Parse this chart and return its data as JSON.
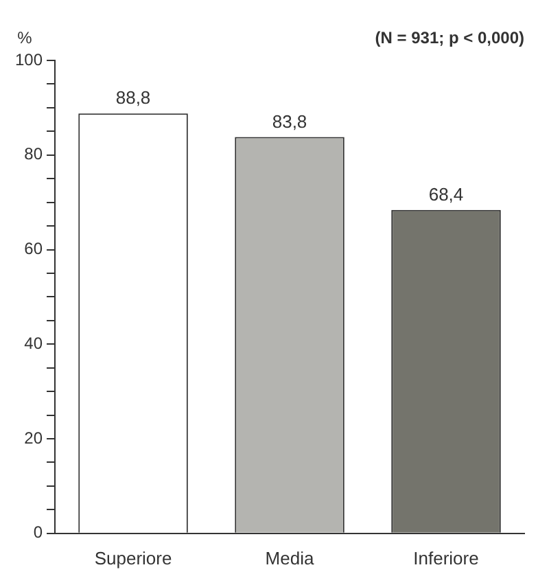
{
  "chart_data": {
    "type": "bar",
    "ylabel": "%",
    "annotations": [
      "(N = 931; p < 0,000)"
    ],
    "categories": [
      "Superiore",
      "Media",
      "Inferiore"
    ],
    "values": [
      88.8,
      83.8,
      68.4
    ],
    "value_labels": [
      "88,8",
      "83,8",
      "68,4"
    ],
    "colors": [
      "#ffffff",
      "#b4b4b0",
      "#74746c"
    ],
    "ylim": [
      0,
      100
    ],
    "yticks": [
      0,
      {
        "value": 5,
        "label": null
      },
      {
        "value": 10,
        "label": null
      },
      {
        "value": 15,
        "label": null
      },
      20,
      {
        "value": 25,
        "label": null
      },
      {
        "value": 30,
        "label": null
      },
      {
        "value": 35,
        "label": null
      },
      40,
      {
        "value": 45,
        "label": null
      },
      {
        "value": 50,
        "label": null
      },
      {
        "value": 55,
        "label": null
      },
      60,
      {
        "value": 65,
        "label": null
      },
      {
        "value": 70,
        "label": null
      },
      {
        "value": 75,
        "label": null
      },
      80,
      {
        "value": 85,
        "label": null
      },
      {
        "value": 90,
        "label": null
      },
      {
        "value": 95,
        "label": null
      },
      100
    ],
    "grid": false,
    "legend": false
  }
}
